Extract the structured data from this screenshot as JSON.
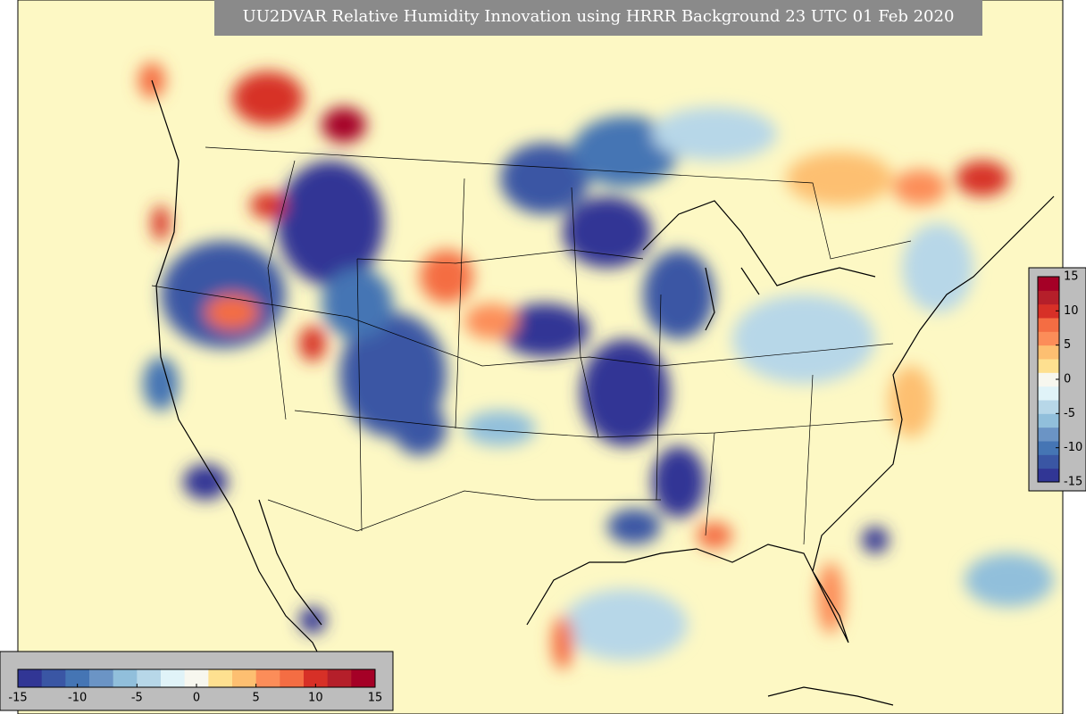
{
  "title": "UU2DVAR Relative Humidity Innovation using HRRR Background 23 UTC 01 Feb 2020",
  "colorbar": {
    "range": [
      -15,
      15
    ],
    "ticks": [
      -15,
      -10,
      -5,
      0,
      5,
      10,
      15
    ],
    "colors": [
      "#313695",
      "#3a56a4",
      "#4575b4",
      "#6b94c5",
      "#91bfdb",
      "#b7d7e8",
      "#e0f3f8",
      "#f7f7ef",
      "#fee090",
      "#fdbf71",
      "#fc8d59",
      "#f46d43",
      "#d73027",
      "#b51f2a",
      "#a50026"
    ]
  }
}
